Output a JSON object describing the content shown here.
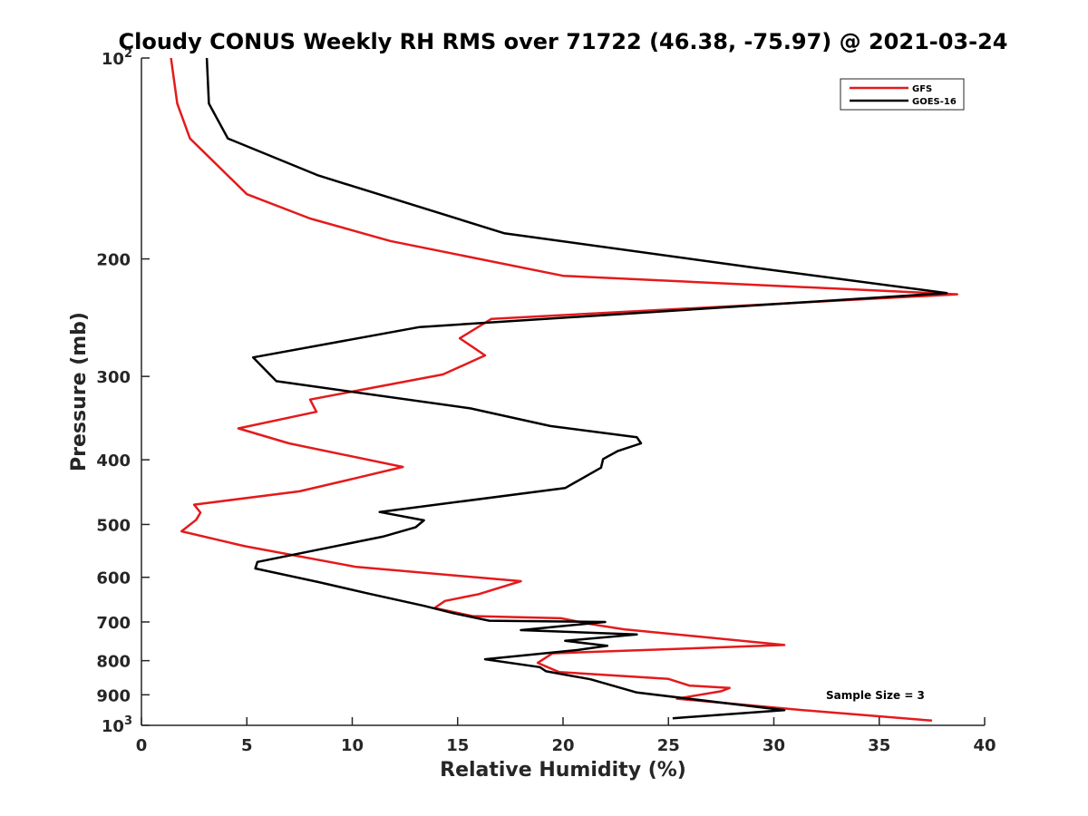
{
  "chart_data": {
    "type": "line",
    "title": "Cloudy CONUS Weekly RH RMS over 71722 (46.38, -75.97) @ 2021-03-24",
    "xlabel": "Relative Humidity (%)",
    "ylabel": "Pressure (mb)",
    "xlim": [
      0,
      40
    ],
    "ylim": [
      100,
      1000
    ],
    "yscale": "log",
    "yreversed": true,
    "grid": false,
    "legend_location": "top-right",
    "x_ticks": [
      {
        "value": 0,
        "label": "0"
      },
      {
        "value": 5,
        "label": "5"
      },
      {
        "value": 10,
        "label": "10"
      },
      {
        "value": 15,
        "label": "15"
      },
      {
        "value": 20,
        "label": "20"
      },
      {
        "value": 25,
        "label": "25"
      },
      {
        "value": 30,
        "label": "30"
      },
      {
        "value": 35,
        "label": "35"
      },
      {
        "value": 40,
        "label": "40"
      }
    ],
    "y_ticks": [
      {
        "value": 100,
        "label": "",
        "base": "10",
        "exp": "2"
      },
      {
        "value": 200,
        "label": "200"
      },
      {
        "value": 300,
        "label": "300"
      },
      {
        "value": 400,
        "label": "400"
      },
      {
        "value": 500,
        "label": "500"
      },
      {
        "value": 600,
        "label": "600"
      },
      {
        "value": 700,
        "label": "700"
      },
      {
        "value": 800,
        "label": "800"
      },
      {
        "value": 900,
        "label": "900"
      },
      {
        "value": 1000,
        "label": "",
        "base": "10",
        "exp": "3"
      }
    ],
    "series": [
      {
        "name": "GFS",
        "color": "#e41a1c",
        "points": [
          [
            1.4,
            100
          ],
          [
            1.7,
            117
          ],
          [
            2.3,
            132
          ],
          [
            5.0,
            160
          ],
          [
            8.0,
            174
          ],
          [
            11.8,
            188
          ],
          [
            20.0,
            212
          ],
          [
            38.7,
            226
          ],
          [
            16.6,
            246
          ],
          [
            15.1,
            263
          ],
          [
            16.3,
            279
          ],
          [
            14.3,
            298
          ],
          [
            8.0,
            325
          ],
          [
            8.3,
            339
          ],
          [
            4.6,
            359
          ],
          [
            7.0,
            378
          ],
          [
            12.4,
            410
          ],
          [
            10.2,
            426
          ],
          [
            7.5,
            446
          ],
          [
            2.5,
            467
          ],
          [
            2.8,
            480
          ],
          [
            2.6,
            492
          ],
          [
            1.9,
            512
          ],
          [
            4.9,
            539
          ],
          [
            10.2,
            579
          ],
          [
            18.0,
            608
          ],
          [
            16.0,
            636
          ],
          [
            14.4,
            651
          ],
          [
            13.9,
            667
          ],
          [
            15.7,
            686
          ],
          [
            19.9,
            691
          ],
          [
            21.3,
            705
          ],
          [
            22.9,
            718
          ],
          [
            30.5,
            758
          ],
          [
            19.5,
            780
          ],
          [
            18.8,
            806
          ],
          [
            19.8,
            832
          ],
          [
            25.0,
            852
          ],
          [
            26.0,
            872
          ],
          [
            27.9,
            879
          ],
          [
            27.5,
            889
          ],
          [
            25.4,
            912
          ],
          [
            31.2,
            948
          ],
          [
            37.5,
            984
          ]
        ]
      },
      {
        "name": "GOES-16",
        "color": "#000000",
        "points": [
          [
            3.1,
            100
          ],
          [
            3.2,
            117
          ],
          [
            4.1,
            132
          ],
          [
            8.4,
            150
          ],
          [
            17.2,
            183
          ],
          [
            29.0,
            206
          ],
          [
            38.2,
            225
          ],
          [
            13.2,
            253
          ],
          [
            5.3,
            281
          ],
          [
            6.4,
            305
          ],
          [
            15.6,
            335
          ],
          [
            19.4,
            356
          ],
          [
            23.5,
            370
          ],
          [
            23.7,
            378
          ],
          [
            22.6,
            388
          ],
          [
            21.9,
            399
          ],
          [
            21.8,
            411
          ],
          [
            20.1,
            441
          ],
          [
            11.3,
            479
          ],
          [
            13.4,
            493
          ],
          [
            13.0,
            505
          ],
          [
            11.5,
            521
          ],
          [
            5.5,
            569
          ],
          [
            5.4,
            582
          ],
          [
            8.4,
            610
          ],
          [
            10.7,
            634
          ],
          [
            13.4,
            662
          ],
          [
            14.8,
            679
          ],
          [
            16.5,
            697
          ],
          [
            22.0,
            700
          ],
          [
            18.0,
            720
          ],
          [
            23.5,
            731
          ],
          [
            20.1,
            747
          ],
          [
            22.1,
            760
          ],
          [
            20.7,
            771
          ],
          [
            16.3,
            796
          ],
          [
            18.9,
            818
          ],
          [
            19.2,
            830
          ],
          [
            21.3,
            853
          ],
          [
            23.5,
            893
          ],
          [
            30.5,
            949
          ],
          [
            25.2,
            976
          ]
        ]
      }
    ],
    "annotations": [
      {
        "text": "Sample Size = 3",
        "x": 35.0,
        "y": 850
      }
    ]
  }
}
